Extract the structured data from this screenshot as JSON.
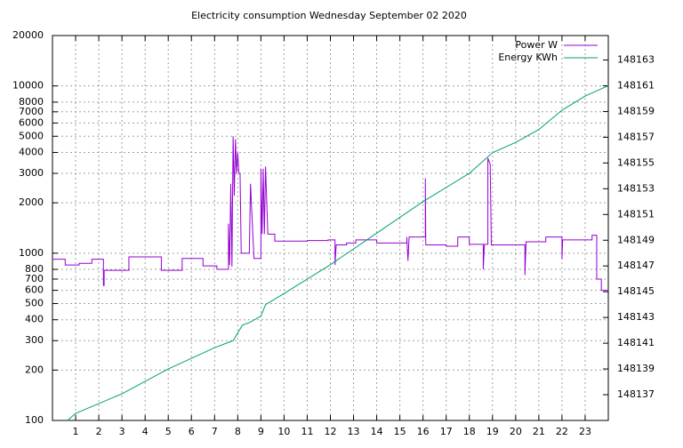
{
  "chart_data": {
    "type": "line",
    "title": "Electricity consumption Wednesday September 02 2020",
    "xlim": [
      0,
      24
    ],
    "xticks": [
      1,
      2,
      3,
      4,
      5,
      6,
      7,
      8,
      9,
      10,
      11,
      12,
      13,
      14,
      15,
      16,
      17,
      18,
      19,
      20,
      21,
      22,
      23
    ],
    "ylim": [
      100,
      20000
    ],
    "ylog": true,
    "yticks": [
      100,
      200,
      300,
      400,
      500,
      600,
      700,
      800,
      1000,
      2000,
      3000,
      4000,
      5000,
      6000,
      7000,
      8000,
      10000,
      20000
    ],
    "y2lim": [
      148135,
      148164.9
    ],
    "y2ticks": [
      148137,
      148139,
      148141,
      148143,
      148145,
      148147,
      148149,
      148151,
      148153,
      148155,
      148157,
      148159,
      148161,
      148163
    ],
    "grid": true,
    "legend": "top-right",
    "series": [
      {
        "name": "Power W",
        "color": "#9400d3",
        "axis": "y",
        "x": [
          0,
          0.55,
          0.55,
          1.15,
          1.15,
          1.7,
          1.7,
          2.2,
          2.2,
          2.23,
          2.23,
          3.3,
          3.3,
          4.7,
          4.7,
          5.6,
          5.6,
          6.5,
          6.5,
          7.1,
          7.1,
          7.6,
          7.6,
          7.65,
          7.7,
          7.75,
          7.8,
          7.85,
          7.9,
          7.95,
          8.0,
          8.05,
          8.1,
          8.15,
          8.2,
          8.3,
          8.3,
          8.5,
          8.55,
          8.7,
          8.7,
          9.0,
          9.0,
          9.05,
          9.1,
          9.15,
          9.2,
          9.3,
          9.3,
          9.6,
          9.6,
          10.1,
          10.1,
          11.0,
          11.0,
          11.9,
          11.9,
          12.2,
          12.2,
          12.25,
          12.25,
          12.7,
          12.7,
          13.1,
          13.1,
          14.0,
          14.0,
          15.3,
          15.3,
          15.35,
          15.4,
          16.1,
          16.1,
          16.12,
          16.15,
          17.0,
          17.0,
          17.5,
          17.5,
          18.0,
          18.0,
          18.6,
          18.6,
          18.65,
          18.7,
          18.8,
          18.8,
          18.9,
          18.95,
          20.4,
          20.4,
          20.45,
          20.5,
          21.3,
          21.3,
          22.0,
          22.0,
          22.03,
          22.05,
          23.3,
          23.3,
          23.5,
          23.5,
          23.7,
          23.7,
          24
        ],
        "values": [
          920,
          920,
          850,
          850,
          870,
          870,
          920,
          920,
          640,
          640,
          790,
          790,
          950,
          950,
          790,
          790,
          930,
          930,
          840,
          840,
          800,
          800,
          1500,
          850,
          2600,
          830,
          5000,
          2200,
          4800,
          3000,
          4000,
          3000,
          3000,
          1000,
          1000,
          1000,
          1000,
          1000,
          2600,
          930,
          930,
          930,
          3200,
          1300,
          3200,
          1300,
          3300,
          1300,
          1300,
          1300,
          1180,
          1180,
          1180,
          1180,
          1190,
          1190,
          1200,
          1200,
          850,
          1120,
          1120,
          1120,
          1150,
          1150,
          1200,
          1200,
          1150,
          1150,
          1250,
          900,
          1250,
          1250,
          2800,
          1120,
          1120,
          1120,
          1100,
          1100,
          1250,
          1250,
          1130,
          1130,
          800,
          1130,
          1130,
          1130,
          3700,
          3400,
          1120,
          1120,
          740,
          1170,
          1170,
          1170,
          1250,
          1250,
          920,
          1200,
          1200,
          1200,
          1280,
          1280,
          700,
          700,
          600,
          600
        ]
      },
      {
        "name": "Energy KWh",
        "color": "#009e73",
        "axis": "y2",
        "x": [
          0.65,
          1,
          3,
          5,
          7,
          7.8,
          8.2,
          8.5,
          9,
          9.2,
          10,
          12,
          14,
          16,
          18,
          19,
          20,
          21,
          22,
          23,
          24
        ],
        "values": [
          148135,
          148135.55,
          148137.07,
          148139,
          148140.65,
          148141.2,
          148142.4,
          148142.6,
          148143.1,
          148144,
          148144.86,
          148147.1,
          148149.55,
          148152,
          148154.2,
          148155.8,
          148156.6,
          148157.6,
          148159.1,
          148160.2,
          148161
        ]
      }
    ]
  }
}
